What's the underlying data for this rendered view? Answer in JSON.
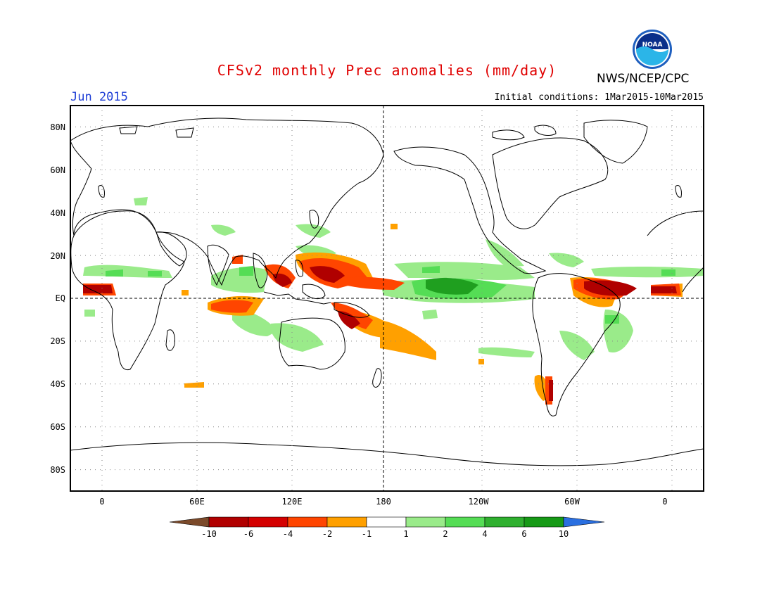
{
  "header": {
    "title": "CFSv2 monthly Prec anomalies (mm/day)",
    "month": "Jun 2015",
    "initial_conditions": "Initial conditions: 1Mar2015-10Mar2015",
    "agency": "NWS/NCEP/CPC",
    "logo_text": "NOAA"
  },
  "axes": {
    "lat_labels": [
      "80N",
      "60N",
      "40N",
      "20N",
      "EQ",
      "20S",
      "40S",
      "60S",
      "80S"
    ],
    "lat_values": [
      80,
      60,
      40,
      20,
      0,
      -20,
      -40,
      -60,
      -80
    ],
    "lon_labels": [
      "0",
      "60E",
      "120E",
      "180",
      "120W",
      "60W",
      "0"
    ],
    "lon_values": [
      0,
      60,
      120,
      180,
      240,
      300,
      360
    ],
    "lat_range": [
      -90,
      90
    ],
    "lon_range": [
      -20,
      380
    ]
  },
  "colorbar": {
    "labels": [
      "-10",
      "-6",
      "-4",
      "-2",
      "-1",
      "1",
      "2",
      "4",
      "6",
      "10"
    ],
    "colors": [
      "#7b4a2a",
      "#b10000",
      "#d40000",
      "#ff4500",
      "#ffa000",
      "#ffffff",
      "#9aeb8a",
      "#55dd55",
      "#2fb02f",
      "#169a16",
      "#2a6fe0"
    ]
  },
  "colors": {
    "title": "#e00000",
    "month": "#1f3fd6",
    "dry_strong": "#b00000",
    "dry_mod": "#ff4500",
    "dry_weak": "#ffa000",
    "wet_weak": "#9aeb8a",
    "wet_mod": "#55dd55",
    "wet_strong": "#1f9f1f"
  }
}
